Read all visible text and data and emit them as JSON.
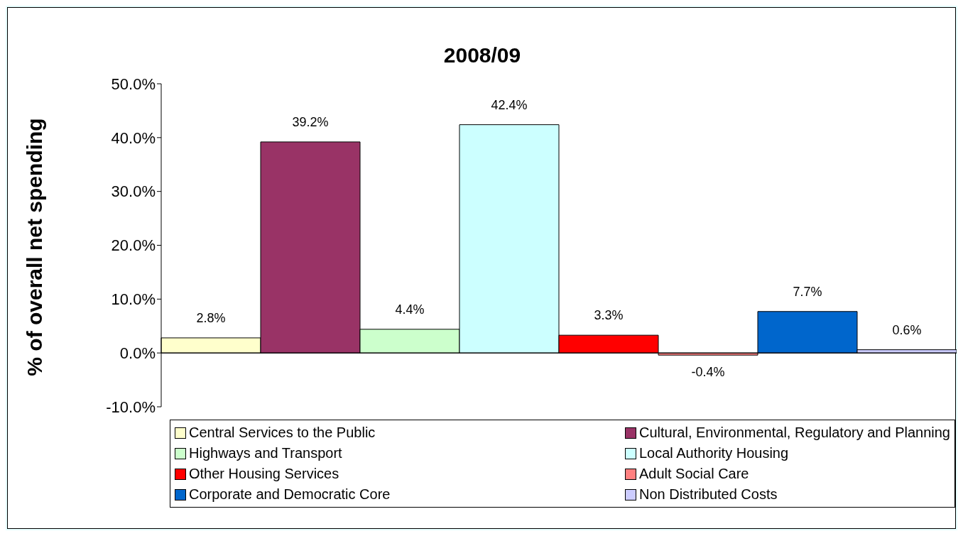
{
  "chart_data": {
    "type": "bar",
    "title": "2008/09",
    "ylabel": "% of overall net spending",
    "categories": [
      null
    ],
    "series": [
      {
        "name": "Central Services to the Public",
        "color": "#ffffcc",
        "values": [
          2.8
        ],
        "value_labels": [
          "2.8%"
        ]
      },
      {
        "name": "Cultural, Environmental, Regulatory and Planning",
        "color": "#993366",
        "values": [
          39.2
        ],
        "value_labels": [
          "39.2%"
        ]
      },
      {
        "name": "Highways and Transport",
        "color": "#ccffcc",
        "values": [
          4.4
        ],
        "value_labels": [
          "4.4%"
        ]
      },
      {
        "name": "Local Authority Housing",
        "color": "#ccffff",
        "values": [
          42.4
        ],
        "value_labels": [
          "42.4%"
        ]
      },
      {
        "name": "Other Housing Services",
        "color": "#ff0000",
        "values": [
          3.3
        ],
        "value_labels": [
          "3.3%"
        ]
      },
      {
        "name": "Adult Social Care",
        "color": "#ff8080",
        "values": [
          -0.4
        ],
        "value_labels": [
          "-0.4%"
        ]
      },
      {
        "name": "Corporate and Democratic Core",
        "color": "#0066cc",
        "values": [
          7.7
        ],
        "value_labels": [
          "7.7%"
        ]
      },
      {
        "name": "Non Distributed Costs",
        "color": "#ccccff",
        "values": [
          0.6
        ],
        "value_labels": [
          "0.6%"
        ]
      }
    ],
    "ylim": [
      -10,
      50
    ],
    "yticks": [
      {
        "value": -10,
        "label": "-10.0%"
      },
      {
        "value": 0,
        "label": "0.0%"
      },
      {
        "value": 10,
        "label": "10.0%"
      },
      {
        "value": 20,
        "label": "20.0%"
      },
      {
        "value": 30,
        "label": "30.0%"
      },
      {
        "value": 40,
        "label": "40.0%"
      },
      {
        "value": 50,
        "label": "50.0%"
      }
    ],
    "legend": "bottom"
  }
}
